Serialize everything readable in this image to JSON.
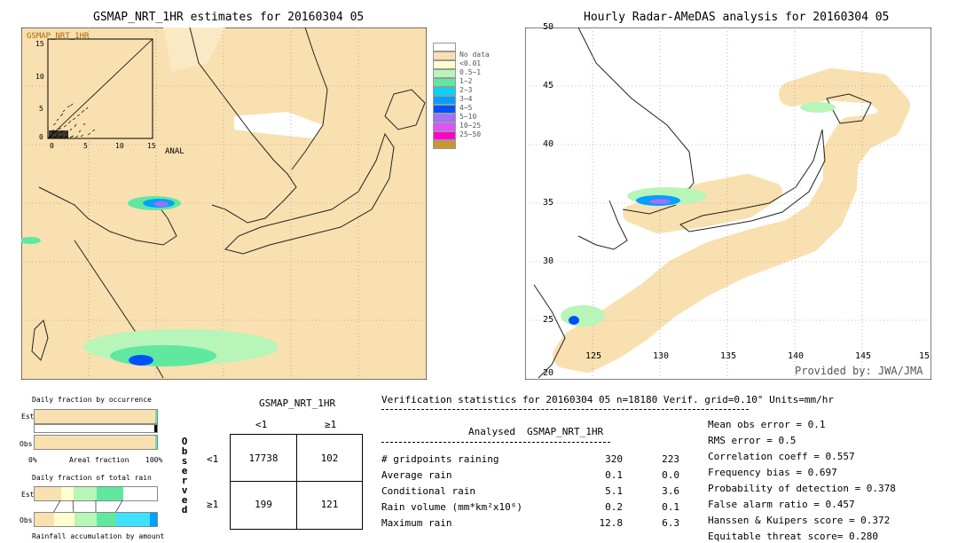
{
  "left_panel": {
    "title": "GSMAP_NRT_1HR estimates for 20160304 05",
    "inset_label": "GSMAP_NRT_1HR",
    "inset_x_label": "ANAL",
    "inset_ticks_y": [
      "15",
      "10",
      "5",
      "0"
    ],
    "inset_ticks_x": [
      "0",
      "5",
      "10",
      "15"
    ]
  },
  "right_panel": {
    "title": "Hourly Radar-AMeDAS analysis for 20160304 05",
    "lat_labels": [
      "45",
      "40",
      "35",
      "30",
      "25",
      "20"
    ],
    "lon_labels": [
      "125",
      "130",
      "135",
      "140",
      "145"
    ],
    "corner_top": "50",
    "corner_right": "15",
    "credit": "Provided by: JWA/JMA"
  },
  "legend": {
    "items": [
      {
        "label": "",
        "color": "#ffffff"
      },
      {
        "label": "No data",
        "color": "#f9e0b0"
      },
      {
        "label": "<0.01",
        "color": "#ffffd0"
      },
      {
        "label": "0.5~1",
        "color": "#b8f5b8"
      },
      {
        "label": "1~2",
        "color": "#60e8a0"
      },
      {
        "label": "2~3",
        "color": "#00d4ff"
      },
      {
        "label": "3~4",
        "color": "#00a0ff"
      },
      {
        "label": "4~5",
        "color": "#0050ff"
      },
      {
        "label": "5~10",
        "color": "#a070ff"
      },
      {
        "label": "10~25",
        "color": "#e050ff"
      },
      {
        "label": "25~50",
        "color": "#ff00c8"
      },
      {
        "label": "",
        "color": "#c89632"
      }
    ]
  },
  "bottom_left": {
    "occurrence_title": "Daily fraction by occurrence",
    "est_label": "Est",
    "obs_label": "Obs",
    "axis_left": "0%",
    "axis_mid": "Areal fraction",
    "axis_right": "100%",
    "total_rain_title": "Daily fraction of total rain",
    "accum_title": "Rainfall accumulation by amount"
  },
  "contingency": {
    "title": "GSMAP_NRT_1HR",
    "col_lt": "<1",
    "col_ge": "≥1",
    "row_lt": "<1",
    "row_ge": "≥1",
    "side_label": [
      "O",
      "b",
      "s",
      "e",
      "r",
      "v",
      "e",
      "d"
    ],
    "cells": {
      "a": "17738",
      "b": "102",
      "c": "199",
      "d": "121"
    }
  },
  "verification": {
    "header": "Verification statistics for 20160304 05   n=18180   Verif. grid=0.10°   Units=mm/hr",
    "col_analysed": "Analysed",
    "col_gsmap": "GSMAP_NRT_1HR",
    "rows": [
      {
        "label": "# gridpoints raining",
        "analysed": "320",
        "gsmap": "223"
      },
      {
        "label": "Average rain",
        "analysed": "0.1",
        "gsmap": "0.0"
      },
      {
        "label": "Conditional rain",
        "analysed": "5.1",
        "gsmap": "3.6"
      },
      {
        "label": "Rain volume (mm*km²x10⁶)",
        "analysed": "0.2",
        "gsmap": "0.1"
      },
      {
        "label": "Maximum rain",
        "analysed": "12.8",
        "gsmap": "6.3"
      }
    ],
    "scores": [
      "Mean obs error = 0.1",
      "RMS error = 0.5",
      "Correlation coeff = 0.557",
      "Frequency bias = 0.697",
      "Probability of detection = 0.378",
      "False alarm ratio = 0.457",
      "Hanssen & Kuipers score = 0.372",
      "Equitable threat score= 0.280"
    ]
  },
  "chart_data": {
    "type": "table",
    "contingency_table": {
      "estimate_lt1_observed_lt1": 17738,
      "estimate_ge1_observed_lt1": 102,
      "estimate_lt1_observed_ge1": 199,
      "estimate_ge1_observed_ge1": 121
    },
    "statistics": {
      "n": 18180,
      "gridpoints_raining": {
        "analysed": 320,
        "gsmap": 223
      },
      "average_rain": {
        "analysed": 0.1,
        "gsmap": 0.0
      },
      "conditional_rain": {
        "analysed": 5.1,
        "gsmap": 3.6
      },
      "rain_volume": {
        "analysed": 0.2,
        "gsmap": 0.1
      },
      "maximum_rain": {
        "analysed": 12.8,
        "gsmap": 6.3
      },
      "mean_obs_error": 0.1,
      "rms_error": 0.5,
      "correlation_coeff": 0.557,
      "frequency_bias": 0.697,
      "probability_of_detection": 0.378,
      "false_alarm_ratio": 0.457,
      "hanssen_kuipers_score": 0.372,
      "equitable_threat_score": 0.28
    },
    "occurrence_fractions": {
      "est": 0.995,
      "obs": 0.99
    },
    "map_axes": {
      "lat": [
        20,
        50
      ],
      "lon": [
        120,
        150
      ]
    }
  }
}
